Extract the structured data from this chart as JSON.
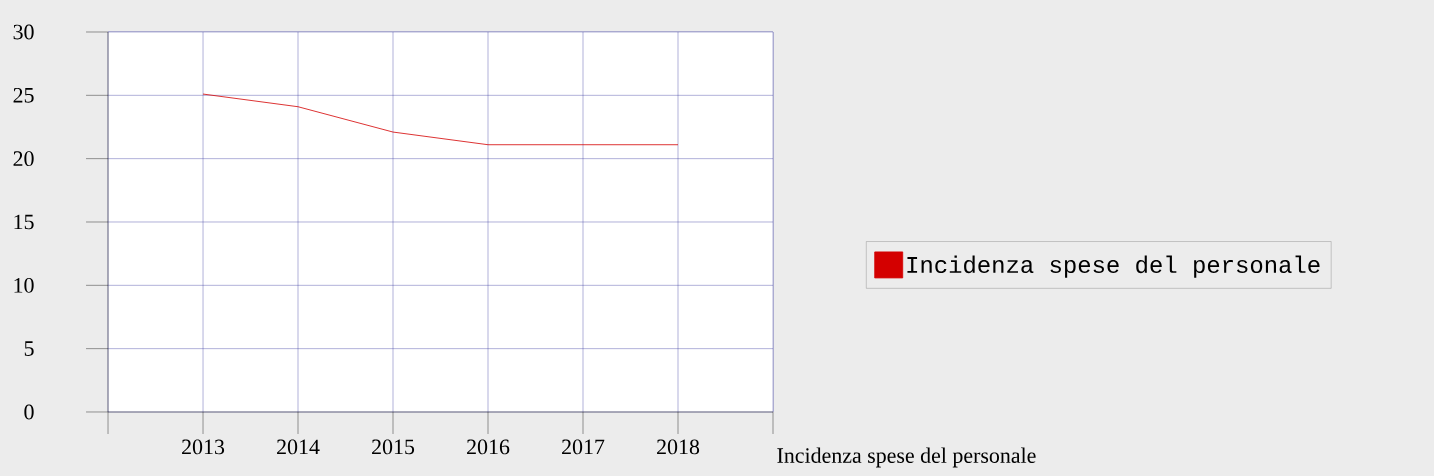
{
  "chart_data": {
    "type": "line",
    "xlabel": "Incidenza spese del personale",
    "categories": [
      "2013",
      "2014",
      "2015",
      "2016",
      "2017",
      "2018"
    ],
    "series": [
      {
        "name": "Incidenza spese del personale",
        "color": "#d40000",
        "values": [
          25.1,
          24.1,
          22.1,
          21.1,
          21.1,
          21.1
        ]
      }
    ],
    "ylim": [
      0,
      30
    ],
    "yticks": [
      0,
      5,
      10,
      15,
      20,
      25,
      30
    ],
    "grid": true,
    "legend": "right"
  }
}
